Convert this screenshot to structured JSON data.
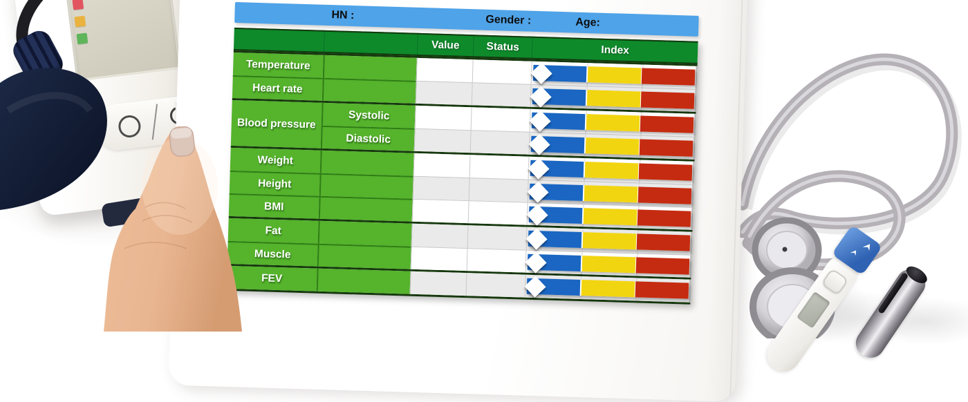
{
  "patient_bar": {
    "hn_label": "HN :",
    "hn_value": "",
    "gender_label": "Gender :",
    "gender_value": "",
    "age_label": "Age:",
    "age_value": ""
  },
  "table": {
    "headers": {
      "value": "Value",
      "status": "Status",
      "index": "Index"
    },
    "index_colors": {
      "blue": "#1a66c2",
      "yellow": "#f2d511",
      "red": "#c52b10"
    },
    "marker": {
      "shape": "diamond",
      "color": "#ffffff"
    },
    "groups": [
      {
        "rows": [
          {
            "label": "Temperature",
            "value": "",
            "status": "",
            "shade": "white"
          },
          {
            "label": "Heart rate",
            "value": "",
            "status": "",
            "shade": "gray"
          }
        ]
      },
      {
        "label": "Blood pressure",
        "rows": [
          {
            "label": "Systolic",
            "value": "",
            "status": "",
            "shade": "white"
          },
          {
            "label": "Diastolic",
            "value": "",
            "status": "",
            "shade": "gray"
          }
        ]
      },
      {
        "rows": [
          {
            "label": "Weight",
            "value": "",
            "status": "",
            "shade": "white"
          },
          {
            "label": "Height",
            "value": "",
            "status": "",
            "shade": "gray"
          },
          {
            "label": "BMI",
            "value": "",
            "status": "",
            "shade": "white"
          }
        ]
      },
      {
        "rows": [
          {
            "label": "Fat",
            "value": "",
            "status": "",
            "shade": "gray"
          },
          {
            "label": "Muscle",
            "value": "",
            "status": "",
            "shade": "white"
          }
        ]
      },
      {
        "rows": [
          {
            "label": "FEV",
            "value": "",
            "status": "",
            "shade": "gray"
          }
        ]
      }
    ]
  },
  "colors": {
    "patient_bar_blue": "#4fa3e8",
    "header_green": "#0e8a2b",
    "row_green": "#55b32c",
    "group_separator": "#16380d"
  },
  "scene": {
    "items": [
      "blood-pressure-monitor",
      "blood-pressure-cuff",
      "hand-holding-tablet",
      "tablet",
      "stethoscope",
      "digital-thermometer",
      "pen"
    ],
    "monitor_lights": [
      "#e25560",
      "#eab23f",
      "#5fb55a"
    ]
  }
}
